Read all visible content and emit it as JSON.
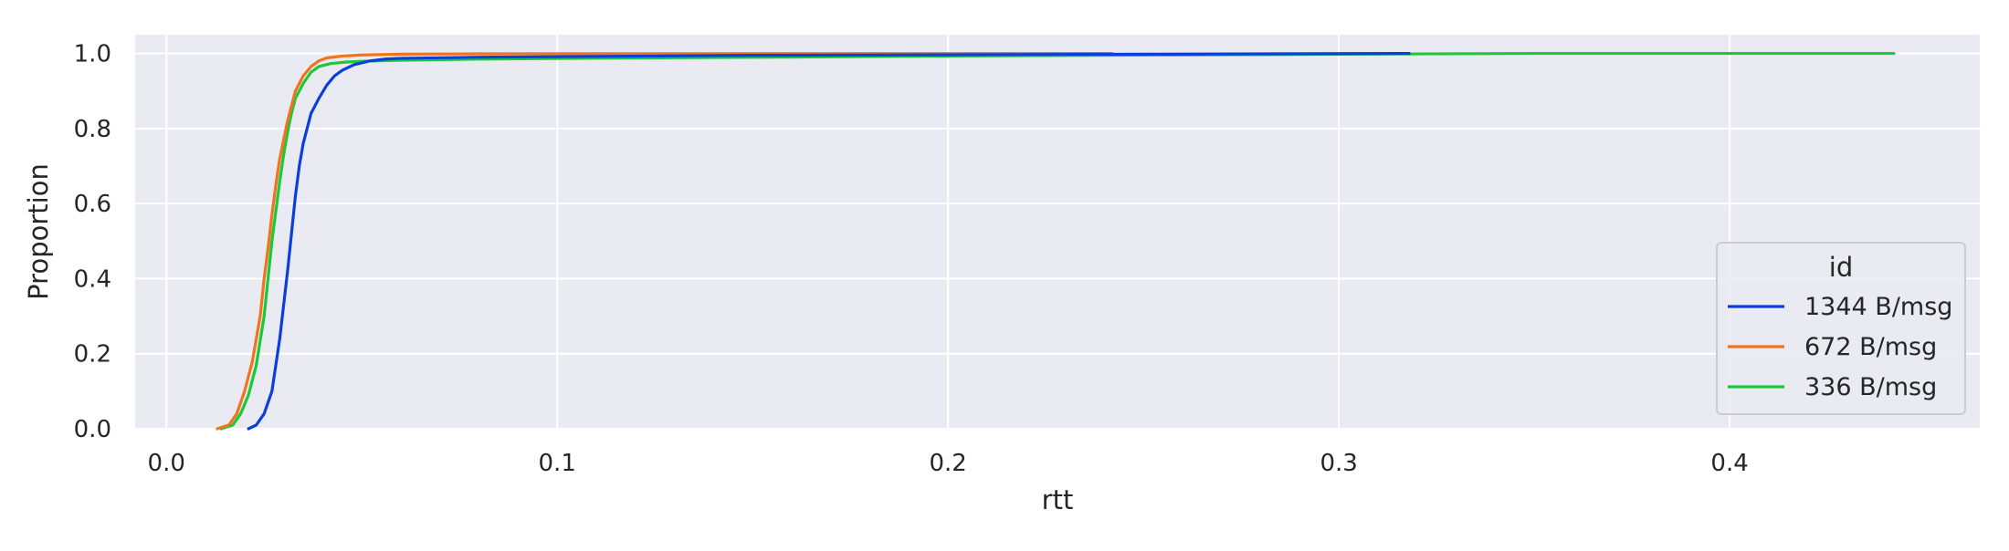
{
  "chart_data": {
    "type": "line",
    "plot_kind": "ecdf",
    "xlabel": "rtt",
    "ylabel": "Proportion",
    "xlim": [
      -0.008,
      0.464
    ],
    "ylim": [
      0,
      1.05
    ],
    "xticks": [
      0.0,
      0.1,
      0.2,
      0.3,
      0.4
    ],
    "xtick_labels": [
      "0.0",
      "0.1",
      "0.2",
      "0.3",
      "0.4"
    ],
    "yticks": [
      0.0,
      0.2,
      0.4,
      0.6,
      0.8,
      1.0
    ],
    "ytick_labels": [
      "0.0",
      "0.2",
      "0.4",
      "0.6",
      "0.8",
      "1.0"
    ],
    "grid": true,
    "background_color": "#eaeaf2",
    "grid_color": "#ffffff",
    "legend": {
      "title": "id",
      "placement": "lower-right"
    },
    "series": [
      {
        "name": "1344 B/msg",
        "color": "#0b3fdc",
        "x": [
          0.021,
          0.023,
          0.025,
          0.027,
          0.028,
          0.029,
          0.03,
          0.031,
          0.032,
          0.033,
          0.034,
          0.035,
          0.036,
          0.037,
          0.039,
          0.041,
          0.043,
          0.045,
          0.048,
          0.052,
          0.056,
          0.06,
          0.08,
          0.15,
          0.25,
          0.318
        ],
        "y": [
          0.0,
          0.01,
          0.04,
          0.1,
          0.17,
          0.24,
          0.33,
          0.42,
          0.52,
          0.62,
          0.7,
          0.76,
          0.8,
          0.84,
          0.88,
          0.915,
          0.94,
          0.955,
          0.97,
          0.98,
          0.985,
          0.987,
          0.99,
          0.995,
          0.998,
          1.0
        ]
      },
      {
        "name": "672 B/msg",
        "color": "#f0741e",
        "x": [
          0.013,
          0.016,
          0.018,
          0.02,
          0.022,
          0.024,
          0.025,
          0.026,
          0.027,
          0.028,
          0.029,
          0.03,
          0.031,
          0.032,
          0.033,
          0.035,
          0.037,
          0.039,
          0.041,
          0.045,
          0.05,
          0.06,
          0.08,
          0.15,
          0.242
        ],
        "y": [
          0.0,
          0.01,
          0.04,
          0.1,
          0.18,
          0.3,
          0.4,
          0.48,
          0.57,
          0.65,
          0.72,
          0.77,
          0.82,
          0.86,
          0.9,
          0.94,
          0.965,
          0.98,
          0.988,
          0.993,
          0.996,
          0.998,
          0.999,
          0.9995,
          1.0
        ]
      },
      {
        "name": "336 B/msg",
        "color": "#1ac938",
        "x": [
          0.014,
          0.017,
          0.019,
          0.021,
          0.023,
          0.025,
          0.026,
          0.027,
          0.028,
          0.029,
          0.03,
          0.031,
          0.032,
          0.033,
          0.035,
          0.037,
          0.039,
          0.042,
          0.046,
          0.05,
          0.06,
          0.08,
          0.12,
          0.2,
          0.3,
          0.35,
          0.442
        ],
        "y": [
          0.0,
          0.01,
          0.04,
          0.09,
          0.17,
          0.3,
          0.4,
          0.5,
          0.58,
          0.66,
          0.73,
          0.79,
          0.84,
          0.88,
          0.92,
          0.95,
          0.965,
          0.973,
          0.977,
          0.979,
          0.982,
          0.985,
          0.988,
          0.993,
          0.998,
          1.0,
          1.0
        ]
      }
    ]
  }
}
